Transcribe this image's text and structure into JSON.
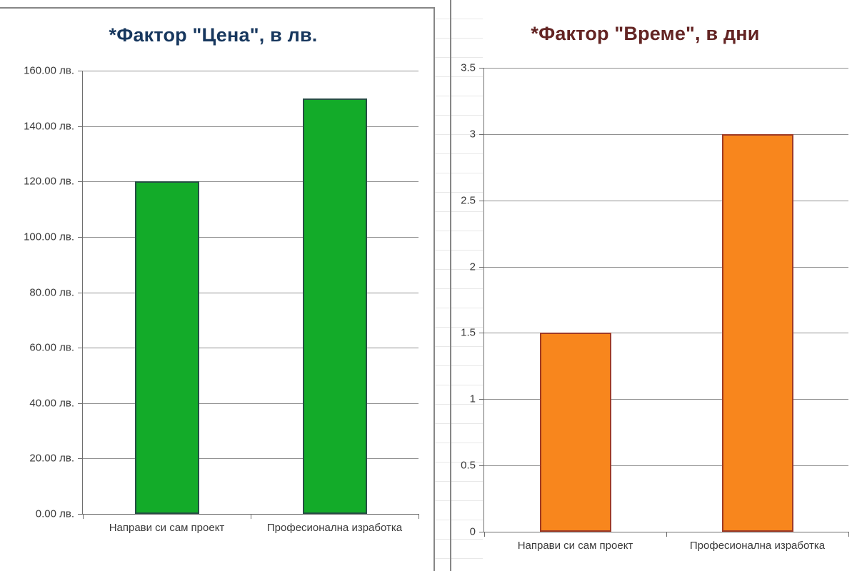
{
  "chart_data": [
    {
      "type": "bar",
      "title": "*Фактор \"Цена\", в лв.",
      "title_color": "#17375E",
      "categories": [
        "Направи си сам проект",
        "Професионална изработка"
      ],
      "values": [
        120,
        150
      ],
      "ylim": [
        0,
        160
      ],
      "ytick_step": 20,
      "ytick_labels": [
        "160.00 лв.",
        "140.00 лв.",
        "120.00 лв.",
        "100.00 лв.",
        "80.00 лв.",
        "60.00 лв.",
        "40.00 лв.",
        "20.00 лв.",
        "0.00 лв."
      ],
      "grid": true,
      "legend": false,
      "bar_fill": "#13AB29",
      "bar_border": "#264D44"
    },
    {
      "type": "bar",
      "title": "*Фактор \"Време\", в дни",
      "title_color": "#632423",
      "categories": [
        "Направи си сам проект",
        "Професионална изработка"
      ],
      "values": [
        1.5,
        3
      ],
      "ylim": [
        0,
        3.5
      ],
      "ytick_step": 0.5,
      "ytick_labels": [
        "3.5",
        "3",
        "2.5",
        "2",
        "1.5",
        "1",
        "0.5",
        "0"
      ],
      "grid": true,
      "legend": false,
      "bar_fill": "#F8861D",
      "bar_border": "#9E3A26"
    }
  ]
}
